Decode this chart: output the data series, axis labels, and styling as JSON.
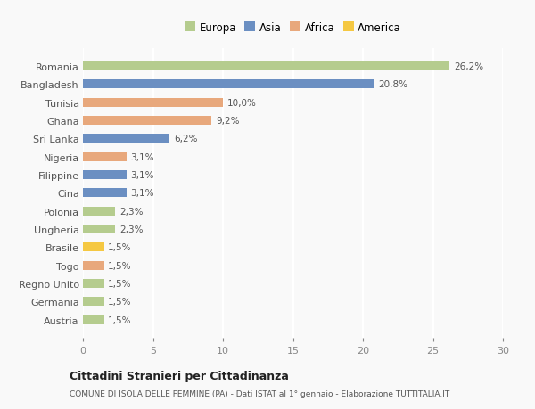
{
  "countries": [
    "Romania",
    "Bangladesh",
    "Tunisia",
    "Ghana",
    "Sri Lanka",
    "Nigeria",
    "Filippine",
    "Cina",
    "Polonia",
    "Ungheria",
    "Brasile",
    "Togo",
    "Regno Unito",
    "Germania",
    "Austria"
  ],
  "values": [
    26.2,
    20.8,
    10.0,
    9.2,
    6.2,
    3.1,
    3.1,
    3.1,
    2.3,
    2.3,
    1.5,
    1.5,
    1.5,
    1.5,
    1.5
  ],
  "labels": [
    "26,2%",
    "20,8%",
    "10,0%",
    "9,2%",
    "6,2%",
    "3,1%",
    "3,1%",
    "3,1%",
    "2,3%",
    "2,3%",
    "1,5%",
    "1,5%",
    "1,5%",
    "1,5%",
    "1,5%"
  ],
  "colors": [
    "#b5cc8e",
    "#6b8fc2",
    "#e8a87c",
    "#e8a87c",
    "#6b8fc2",
    "#e8a87c",
    "#6b8fc2",
    "#6b8fc2",
    "#b5cc8e",
    "#b5cc8e",
    "#f5c842",
    "#e8a87c",
    "#b5cc8e",
    "#b5cc8e",
    "#b5cc8e"
  ],
  "legend_labels": [
    "Europa",
    "Asia",
    "Africa",
    "America"
  ],
  "legend_colors": [
    "#b5cc8e",
    "#6b8fc2",
    "#e8a87c",
    "#f5c842"
  ],
  "title": "Cittadini Stranieri per Cittadinanza",
  "subtitle": "COMUNE DI ISOLA DELLE FEMMINE (PA) - Dati ISTAT al 1° gennaio - Elaborazione TUTTITALIA.IT",
  "xlim": [
    0,
    30
  ],
  "xticks": [
    0,
    5,
    10,
    15,
    20,
    25,
    30
  ],
  "background_color": "#f9f9f9",
  "grid_color": "#ffffff",
  "bar_height": 0.5
}
